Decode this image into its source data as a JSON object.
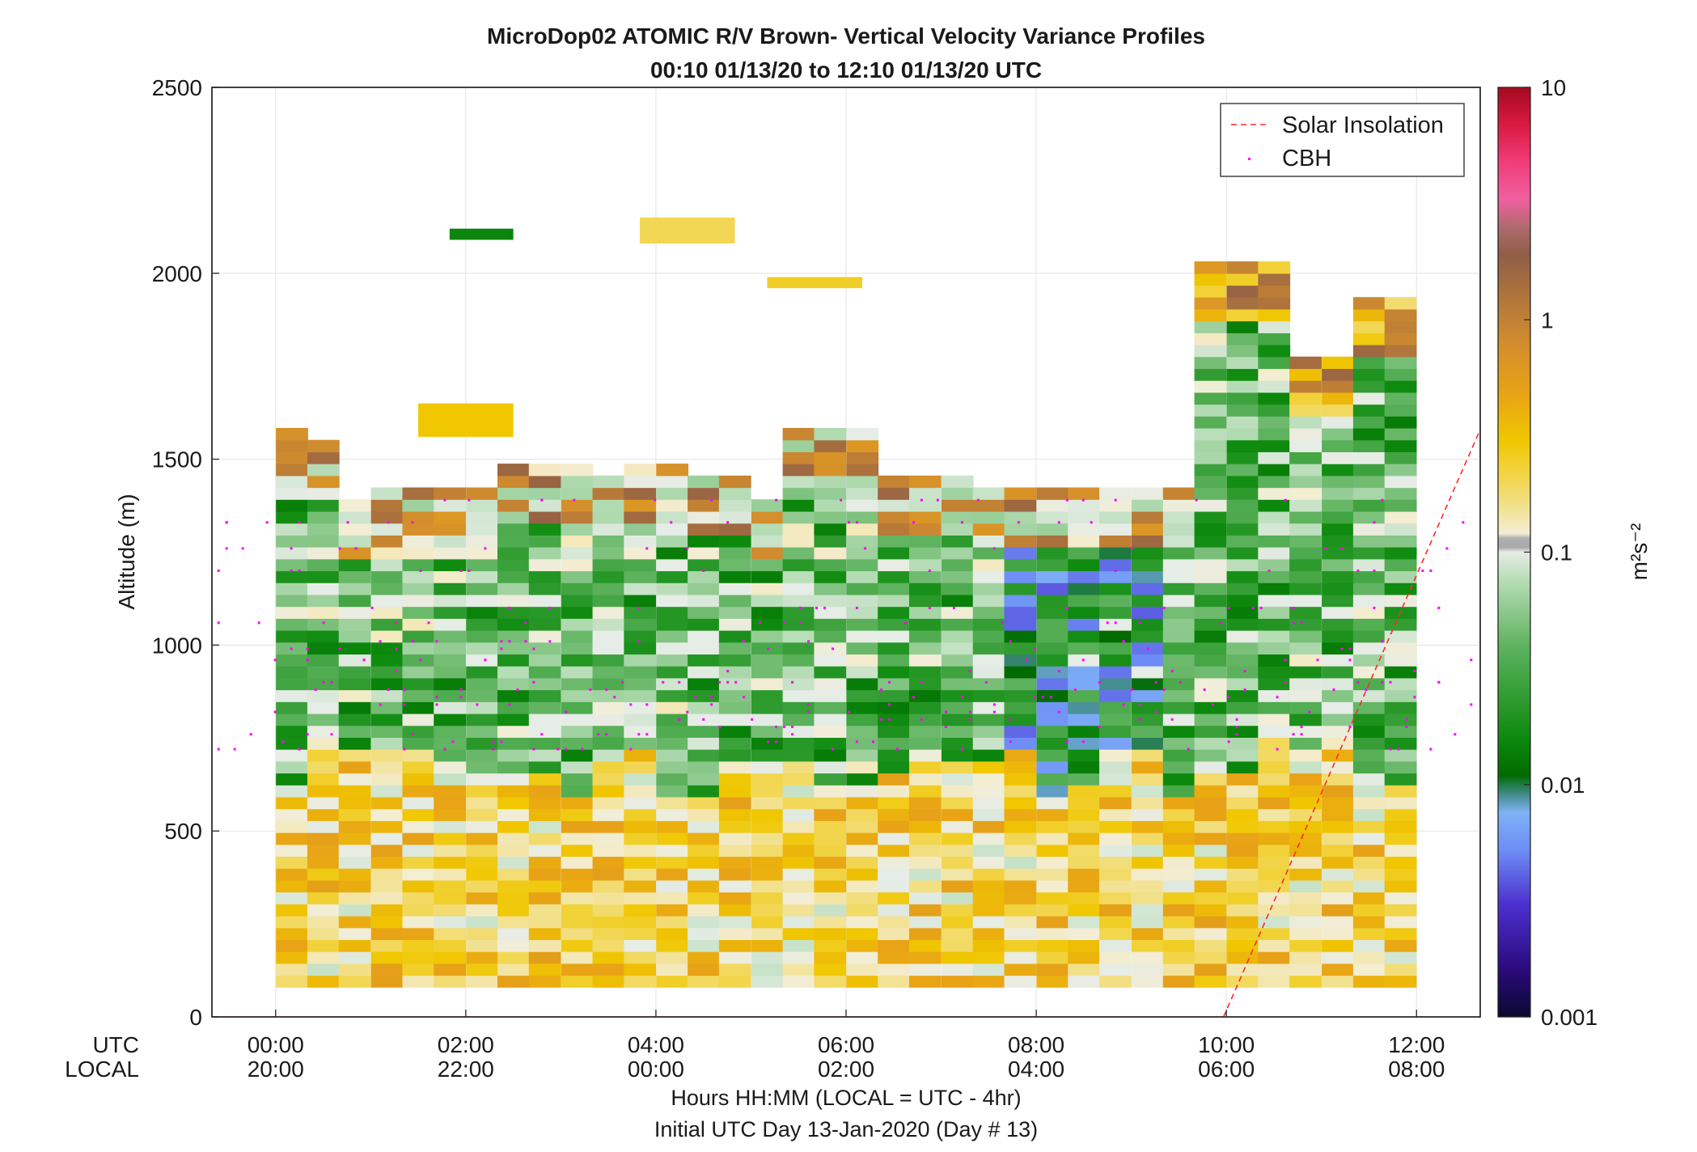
{
  "chart_data": {
    "type": "heatmap",
    "title": "MicroDop02 ATOMIC R/V Brown- Vertical Velocity Variance Profiles",
    "subtitle": "00:10 01/13/20 to 12:10 01/13/20  UTC",
    "ylabel": "Altitude (m)",
    "ylim": [
      0,
      2500
    ],
    "y_ticks": [
      "0",
      "500",
      "1000",
      "1500",
      "2000",
      "2500"
    ],
    "x_range_hours_utc": [
      -0.67,
      12.67
    ],
    "x_ticks_utc": [
      "00:00",
      "02:00",
      "04:00",
      "06:00",
      "08:00",
      "10:00",
      "12:00"
    ],
    "x_ticks_local": [
      "20:00",
      "22:00",
      "00:00",
      "02:00",
      "04:00",
      "06:00",
      "08:00"
    ],
    "row_label_utc": "UTC",
    "row_label_local": "LOCAL",
    "xlabel": "Hours HH:MM  (LOCAL = UTC - 4hr)",
    "footer": "Initial UTC Day 13-Jan-2020 (Day # 13)",
    "grid": true,
    "colorbar": {
      "scale": "log",
      "range": [
        0.001,
        10
      ],
      "tick_labels": [
        "10",
        "1",
        "0.1",
        "0.01",
        "0.001"
      ],
      "units_label": "m²s⁻²"
    },
    "legend": {
      "placement": "top-right",
      "entries": [
        "Solar Insolation",
        "CBH"
      ]
    },
    "colors": {
      "cbh_marker": "#ff00ff",
      "solar_line": "#ff2a2a"
    },
    "profile_columns_utc_hours": [
      0.17,
      0.5,
      0.83,
      1.17,
      1.5,
      1.83,
      2.17,
      2.5,
      2.83,
      3.17,
      3.5,
      3.83,
      4.17,
      4.5,
      4.83,
      5.17,
      5.5,
      5.83,
      6.17,
      6.5,
      6.83,
      7.17,
      7.5,
      7.83,
      8.17,
      8.5,
      8.83,
      9.17,
      9.5,
      9.83,
      10.17,
      10.5,
      10.83,
      11.17,
      11.5,
      11.83
    ],
    "profile_tops_m": [
      1580,
      1550,
      1380,
      1410,
      1410,
      1410,
      1410,
      1480,
      1480,
      1480,
      1440,
      1480,
      1480,
      1440,
      1440,
      1380,
      1580,
      1580,
      1580,
      1440,
      1440,
      1440,
      1410,
      1410,
      1410,
      1410,
      1410,
      1410,
      1410,
      2020,
      2020,
      2020,
      1750,
      1750,
      1920,
      1920
    ],
    "surface_band_m": [
      20,
      650
    ],
    "surface_band_variance_m2s2": 0.25,
    "mid_layer_variance_m2s2": 0.04,
    "upper_elevated_layers": [
      {
        "x_utc": [
          1.83,
          2.5
        ],
        "alt_m": [
          2090,
          2120
        ],
        "variance_m2s2": 0.015
      },
      {
        "x_utc": [
          3.83,
          4.83
        ],
        "alt_m": [
          2080,
          2150
        ],
        "variance_m2s2": 0.2
      },
      {
        "x_utc": [
          5.17,
          6.17
        ],
        "alt_m": [
          1960,
          1990
        ],
        "variance_m2s2": 0.25
      },
      {
        "x_utc": [
          1.5,
          2.5
        ],
        "alt_m": [
          1560,
          1650
        ],
        "variance_m2s2": 0.3
      }
    ],
    "solar_insolation_line": {
      "x_utc": [
        9.97,
        12.67
      ],
      "alt_m": [
        0,
        1580
      ]
    },
    "cbh_points_alt_m": [
      760,
      780,
      800,
      820,
      840,
      860,
      880,
      900,
      930,
      960,
      990,
      720,
      740,
      1010,
      1060,
      1100,
      1200,
      1260,
      1330,
      1390
    ]
  }
}
